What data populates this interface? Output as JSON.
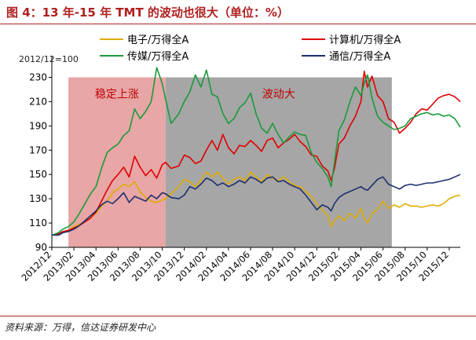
{
  "figure": {
    "title": "图 4：13 年-15 年 TMT 的波动也很大（单位：%）",
    "source": "资料来源：万得，信达证券研发中心"
  },
  "chart_data": {
    "type": "line",
    "ylabel": "2012/12=100",
    "ylim": [
      90,
      240
    ],
    "yticks": [
      90,
      110,
      130,
      150,
      170,
      190,
      210,
      230
    ],
    "x_range": [
      0,
      37
    ],
    "xticks": [
      {
        "pos": 0,
        "label": "2012/12"
      },
      {
        "pos": 2,
        "label": "2013/02"
      },
      {
        "pos": 4,
        "label": "2013/04"
      },
      {
        "pos": 6,
        "label": "2013/06"
      },
      {
        "pos": 8,
        "label": "2013/08"
      },
      {
        "pos": 10,
        "label": "2013/10"
      },
      {
        "pos": 12,
        "label": "2013/12"
      },
      {
        "pos": 14,
        "label": "2014/02"
      },
      {
        "pos": 16,
        "label": "2014/04"
      },
      {
        "pos": 18,
        "label": "2014/06"
      },
      {
        "pos": 20,
        "label": "2014/08"
      },
      {
        "pos": 22,
        "label": "2014/10"
      },
      {
        "pos": 24,
        "label": "2014/12"
      },
      {
        "pos": 26,
        "label": "2015/02"
      },
      {
        "pos": 28,
        "label": "2015/04"
      },
      {
        "pos": 30,
        "label": "2015/06"
      },
      {
        "pos": 32,
        "label": "2015/08"
      },
      {
        "pos": 34,
        "label": "2015/10"
      },
      {
        "pos": 36,
        "label": "2015/12"
      }
    ],
    "regions": [
      {
        "label": "稳定上涨",
        "x_start": 1.5,
        "x_end": 10.3,
        "y_top": 230,
        "color": "#e8a6a6",
        "label_color": "#c00000"
      },
      {
        "label": "波动大",
        "x_start": 10.3,
        "x_end": 30.8,
        "y_top": 230,
        "color": "#a6a6a6",
        "label_color": "#c00000"
      }
    ],
    "series": [
      {
        "name": "电子/万得全A",
        "color": "#e0ac00",
        "x": [
          0,
          0.6,
          1.0,
          1.5,
          2.0,
          2.5,
          3.0,
          3.5,
          4.0,
          4.5,
          5.0,
          5.5,
          6.0,
          6.5,
          7.0,
          7.5,
          8.0,
          8.5,
          9.0,
          9.5,
          10.0,
          10.3,
          10.8,
          11.5,
          12.0,
          12.5,
          13.0,
          13.5,
          14.0,
          14.5,
          15.0,
          15.5,
          16.0,
          16.5,
          17.0,
          17.5,
          18.0,
          18.5,
          19.0,
          19.5,
          20.0,
          20.5,
          21.0,
          21.5,
          22.0,
          22.5,
          23.0,
          23.5,
          24.0,
          24.5,
          25.0,
          25.3,
          25.6,
          26.0,
          26.5,
          27.0,
          27.5,
          28.0,
          28.3,
          28.6,
          29.0,
          29.5,
          30.0,
          30.5,
          31.0,
          31.5,
          32.0,
          32.5,
          33.0,
          33.5,
          34.0,
          34.5,
          35.0,
          35.5,
          36.0,
          36.5,
          37.0
        ],
        "values": [
          100,
          101,
          103,
          104,
          107,
          109,
          111,
          115,
          118,
          124,
          128,
          135,
          138,
          142,
          140,
          144,
          136,
          131,
          128,
          127,
          129,
          130,
          134,
          140,
          146,
          144,
          140,
          145,
          152,
          148,
          152,
          147,
          142,
          146,
          148,
          145,
          152,
          148,
          144,
          150,
          147,
          145,
          148,
          144,
          141,
          140,
          136,
          132,
          126,
          121,
          116,
          107,
          112,
          116,
          112,
          118,
          114,
          122,
          114,
          110,
          118,
          121,
          128,
          122,
          125,
          123,
          126,
          124,
          124,
          123,
          124,
          125,
          124,
          126,
          130,
          132,
          133
        ]
      },
      {
        "name": "计算机/万得全A",
        "color": "#e00000",
        "x": [
          0,
          0.6,
          1.0,
          1.5,
          2.0,
          2.5,
          3.0,
          3.5,
          4.0,
          4.5,
          5.0,
          5.5,
          6.0,
          6.5,
          7.0,
          7.5,
          8.0,
          8.5,
          9.0,
          9.5,
          10.0,
          10.3,
          10.8,
          11.5,
          12.0,
          12.5,
          13.0,
          13.5,
          14.0,
          14.5,
          15.0,
          15.5,
          16.0,
          16.5,
          17.0,
          17.5,
          18.0,
          18.5,
          19.0,
          19.5,
          20.0,
          20.5,
          21.0,
          21.5,
          22.0,
          22.5,
          23.0,
          23.5,
          24.0,
          24.5,
          25.0,
          25.3,
          25.6,
          26.0,
          26.5,
          27.0,
          27.5,
          28.0,
          28.3,
          28.6,
          29.0,
          29.5,
          30.0,
          30.5,
          31.0,
          31.5,
          32.0,
          32.5,
          33.0,
          33.5,
          34.0,
          34.5,
          35.0,
          35.5,
          36.0,
          36.5,
          37.0
        ],
        "values": [
          100,
          101,
          103,
          104,
          106,
          108,
          111,
          114,
          119,
          128,
          137,
          145,
          150,
          156,
          148,
          165,
          156,
          149,
          154,
          147,
          158,
          160,
          155,
          157,
          166,
          164,
          159,
          161,
          170,
          178,
          170,
          183,
          172,
          167,
          174,
          173,
          178,
          174,
          169,
          178,
          180,
          172,
          176,
          179,
          183,
          177,
          173,
          166,
          165,
          157,
          153,
          145,
          155,
          175,
          180,
          190,
          198,
          210,
          235,
          222,
          231,
          215,
          210,
          196,
          193,
          184,
          188,
          193,
          200,
          204,
          203,
          208,
          213,
          215,
          216,
          214,
          210
        ]
      },
      {
        "name": "传媒/万得全A",
        "color": "#1a9a3a",
        "x": [
          0,
          0.6,
          1.0,
          1.5,
          2.0,
          2.5,
          3.0,
          3.5,
          4.0,
          4.5,
          5.0,
          5.5,
          6.0,
          6.5,
          7.0,
          7.5,
          8.0,
          8.5,
          9.0,
          9.5,
          10.0,
          10.3,
          10.8,
          11.5,
          12.0,
          12.5,
          13.0,
          13.5,
          14.0,
          14.5,
          15.0,
          15.5,
          16.0,
          16.5,
          17.0,
          17.5,
          18.0,
          18.5,
          19.0,
          19.5,
          20.0,
          20.5,
          21.0,
          21.5,
          22.0,
          22.5,
          23.0,
          23.5,
          24.0,
          24.5,
          25.0,
          25.3,
          25.6,
          26.0,
          26.5,
          27.0,
          27.5,
          28.0,
          28.3,
          28.6,
          29.0,
          29.5,
          30.0,
          30.5,
          31.0,
          31.5,
          32.0,
          32.5,
          33.0,
          33.5,
          34.0,
          34.5,
          35.0,
          35.5,
          36.0,
          36.5,
          37.0
        ],
        "values": [
          100,
          102,
          105,
          107,
          111,
          118,
          126,
          134,
          140,
          155,
          168,
          172,
          175,
          182,
          186,
          204,
          196,
          202,
          210,
          238,
          225,
          212,
          192,
          200,
          210,
          218,
          232,
          222,
          236,
          216,
          214,
          200,
          192,
          196,
          205,
          209,
          217,
          200,
          188,
          184,
          192,
          183,
          176,
          181,
          185,
          183,
          182,
          168,
          160,
          155,
          148,
          140,
          160,
          186,
          195,
          210,
          222,
          215,
          225,
          232,
          213,
          198,
          193,
          190,
          187,
          188,
          190,
          196,
          198,
          200,
          201,
          199,
          200,
          198,
          199,
          196,
          189
        ]
      },
      {
        "name": "通信/万得全A",
        "color": "#1f2f6e",
        "x": [
          0,
          0.6,
          1.0,
          1.5,
          2.0,
          2.5,
          3.0,
          3.5,
          4.0,
          4.5,
          5.0,
          5.5,
          6.0,
          6.5,
          7.0,
          7.5,
          8.0,
          8.5,
          9.0,
          9.5,
          10.0,
          10.3,
          10.8,
          11.5,
          12.0,
          12.5,
          13.0,
          13.5,
          14.0,
          14.5,
          15.0,
          15.5,
          16.0,
          16.5,
          17.0,
          17.5,
          18.0,
          18.5,
          19.0,
          19.5,
          20.0,
          20.5,
          21.0,
          21.5,
          22.0,
          22.5,
          23.0,
          23.5,
          24.0,
          24.5,
          25.0,
          25.3,
          25.6,
          26.0,
          26.5,
          27.0,
          27.5,
          28.0,
          28.3,
          28.6,
          29.0,
          29.5,
          30.0,
          30.5,
          31.0,
          31.5,
          32.0,
          32.5,
          33.0,
          33.5,
          34.0,
          34.5,
          35.0,
          35.5,
          36.0,
          36.5,
          37.0
        ],
        "values": [
          100,
          100,
          102,
          103,
          105,
          108,
          112,
          116,
          120,
          125,
          128,
          126,
          130,
          135,
          127,
          132,
          130,
          128,
          133,
          130,
          135,
          134,
          131,
          130,
          133,
          140,
          138,
          142,
          147,
          145,
          141,
          143,
          140,
          142,
          145,
          143,
          148,
          146,
          143,
          147,
          148,
          144,
          145,
          142,
          140,
          138,
          133,
          127,
          121,
          125,
          123,
          120,
          126,
          131,
          134,
          136,
          138,
          140,
          138,
          137,
          141,
          146,
          148,
          142,
          140,
          138,
          141,
          142,
          141,
          142,
          143,
          143,
          144,
          145,
          146,
          148,
          150
        ]
      }
    ]
  }
}
